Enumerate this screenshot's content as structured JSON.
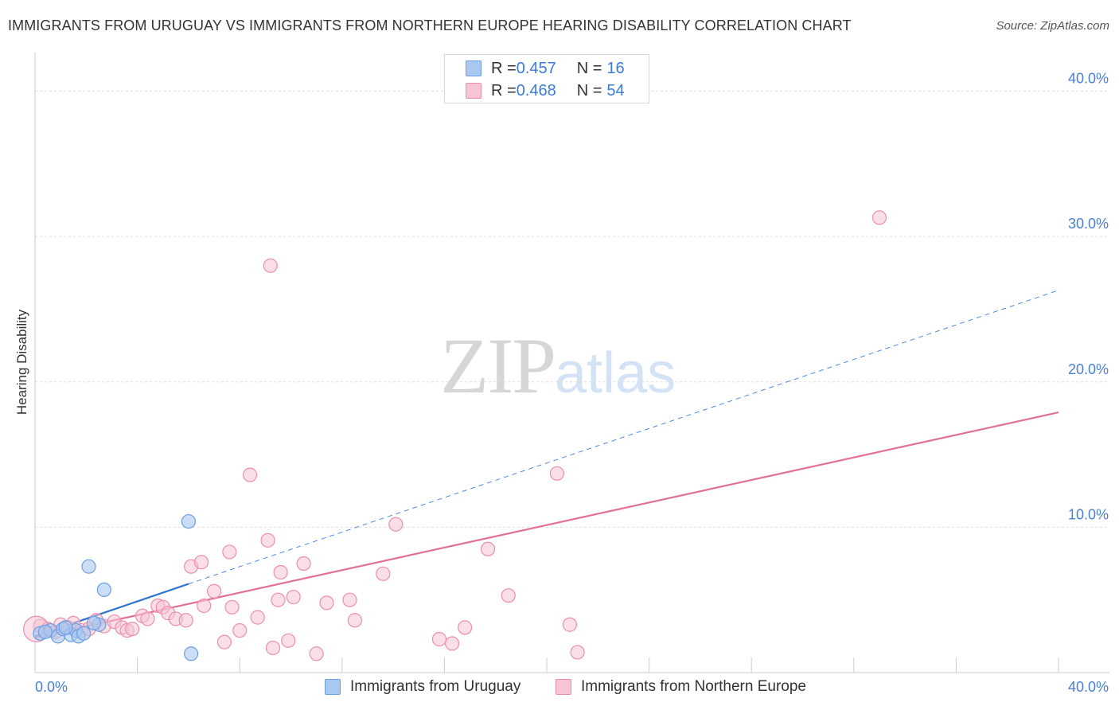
{
  "header": {
    "title": "IMMIGRANTS FROM URUGUAY VS IMMIGRANTS FROM NORTHERN EUROPE HEARING DISABILITY CORRELATION CHART",
    "source": "Source: ZipAtlas.com"
  },
  "watermark": {
    "zip": "ZIP",
    "atlas": "atlas"
  },
  "legend_top": {
    "rows": [
      {
        "r_label": "R = ",
        "r_value": "0.457",
        "n_label": "N = ",
        "n_value": "16",
        "color": "#a9c8f0",
        "border": "#6d9ee0"
      },
      {
        "r_label": "R = ",
        "r_value": "0.468",
        "n_label": "N = ",
        "n_value": "54",
        "color": "#f7c4d4",
        "border": "#ea8fab"
      }
    ]
  },
  "legend_bottom": {
    "items": [
      {
        "label": "Immigrants from Uruguay",
        "color": "#a9c8f0",
        "border": "#6d9ee0"
      },
      {
        "label": "Immigrants from Northern Europe",
        "color": "#f7c4d4",
        "border": "#ea8fab"
      }
    ]
  },
  "chart_data": {
    "type": "scatter",
    "title": "IMMIGRANTS FROM URUGUAY VS IMMIGRANTS FROM NORTHERN EUROPE HEARING DISABILITY CORRELATION CHART",
    "xlabel": "",
    "ylabel": "Hearing Disability",
    "xlim": [
      0,
      40
    ],
    "ylim": [
      0,
      42
    ],
    "x_tick_labels": [
      "0.0%",
      "40.0%"
    ],
    "y_ticks": [
      10,
      20,
      30,
      40
    ],
    "y_tick_labels": [
      "10.0%",
      "20.0%",
      "30.0%",
      "40.0%"
    ],
    "grid": true,
    "series": [
      {
        "name": "Immigrants from Uruguay",
        "color": "#a9c8f0",
        "stroke": "#6d9ee0",
        "line_color": "#2f74d0",
        "points": [
          {
            "x": 0.2,
            "y": 2.7
          },
          {
            "x": 0.6,
            "y": 2.9
          },
          {
            "x": 0.9,
            "y": 2.5
          },
          {
            "x": 1.1,
            "y": 3.0
          },
          {
            "x": 1.4,
            "y": 2.6
          },
          {
            "x": 1.6,
            "y": 2.9
          },
          {
            "x": 1.7,
            "y": 2.5
          },
          {
            "x": 1.9,
            "y": 2.7
          },
          {
            "x": 2.1,
            "y": 7.3
          },
          {
            "x": 2.5,
            "y": 3.3
          },
          {
            "x": 2.7,
            "y": 5.7
          },
          {
            "x": 6.0,
            "y": 10.4
          },
          {
            "x": 6.1,
            "y": 1.3
          },
          {
            "x": 0.4,
            "y": 2.8
          },
          {
            "x": 1.2,
            "y": 3.1
          },
          {
            "x": 2.3,
            "y": 3.4
          }
        ],
        "trend": {
          "x0": 0,
          "y0": 2.5,
          "x1": 6.0,
          "y1": 6.1
        },
        "trend_extension": {
          "x0": 6.0,
          "y0": 6.1,
          "x1": 40,
          "y1": 26.3
        }
      },
      {
        "name": "Immigrants from Northern Europe",
        "color": "#f7c4d4",
        "stroke": "#ea8fab",
        "line_color": "#e0709a",
        "points": [
          {
            "x": 0.2,
            "y": 3.2
          },
          {
            "x": 0.5,
            "y": 3.0
          },
          {
            "x": 0.8,
            "y": 2.8
          },
          {
            "x": 1.0,
            "y": 3.3
          },
          {
            "x": 1.3,
            "y": 3.1
          },
          {
            "x": 1.5,
            "y": 3.4
          },
          {
            "x": 1.8,
            "y": 2.9
          },
          {
            "x": 2.1,
            "y": 3.0
          },
          {
            "x": 2.4,
            "y": 3.6
          },
          {
            "x": 2.7,
            "y": 3.2
          },
          {
            "x": 3.1,
            "y": 3.5
          },
          {
            "x": 3.4,
            "y": 3.1
          },
          {
            "x": 3.6,
            "y": 2.9
          },
          {
            "x": 3.8,
            "y": 3.0
          },
          {
            "x": 4.2,
            "y": 3.9
          },
          {
            "x": 4.4,
            "y": 3.7
          },
          {
            "x": 4.8,
            "y": 4.6
          },
          {
            "x": 5.0,
            "y": 4.5
          },
          {
            "x": 5.2,
            "y": 4.1
          },
          {
            "x": 5.5,
            "y": 3.7
          },
          {
            "x": 5.9,
            "y": 3.6
          },
          {
            "x": 6.1,
            "y": 7.3
          },
          {
            "x": 6.5,
            "y": 7.6
          },
          {
            "x": 6.6,
            "y": 4.6
          },
          {
            "x": 7.0,
            "y": 5.6
          },
          {
            "x": 7.4,
            "y": 2.1
          },
          {
            "x": 7.6,
            "y": 8.3
          },
          {
            "x": 7.7,
            "y": 4.5
          },
          {
            "x": 8.0,
            "y": 2.9
          },
          {
            "x": 8.4,
            "y": 13.6
          },
          {
            "x": 8.7,
            "y": 3.8
          },
          {
            "x": 9.1,
            "y": 9.1
          },
          {
            "x": 9.3,
            "y": 1.7
          },
          {
            "x": 9.6,
            "y": 6.9
          },
          {
            "x": 9.5,
            "y": 5.0
          },
          {
            "x": 9.9,
            "y": 2.2
          },
          {
            "x": 10.1,
            "y": 5.2
          },
          {
            "x": 10.5,
            "y": 7.5
          },
          {
            "x": 11.0,
            "y": 1.3
          },
          {
            "x": 11.4,
            "y": 4.8
          },
          {
            "x": 12.3,
            "y": 5.0
          },
          {
            "x": 12.5,
            "y": 3.6
          },
          {
            "x": 13.6,
            "y": 6.8
          },
          {
            "x": 14.1,
            "y": 10.2
          },
          {
            "x": 15.8,
            "y": 2.3
          },
          {
            "x": 16.3,
            "y": 2.0
          },
          {
            "x": 16.8,
            "y": 3.1
          },
          {
            "x": 17.7,
            "y": 8.5
          },
          {
            "x": 18.5,
            "y": 5.3
          },
          {
            "x": 20.4,
            "y": 13.7
          },
          {
            "x": 20.9,
            "y": 3.3
          },
          {
            "x": 21.2,
            "y": 1.4
          },
          {
            "x": 9.2,
            "y": 28.0
          },
          {
            "x": 33.0,
            "y": 31.3
          }
        ],
        "trend": {
          "x0": 0,
          "y0": 2.4,
          "x1": 40,
          "y1": 17.9
        }
      }
    ]
  }
}
